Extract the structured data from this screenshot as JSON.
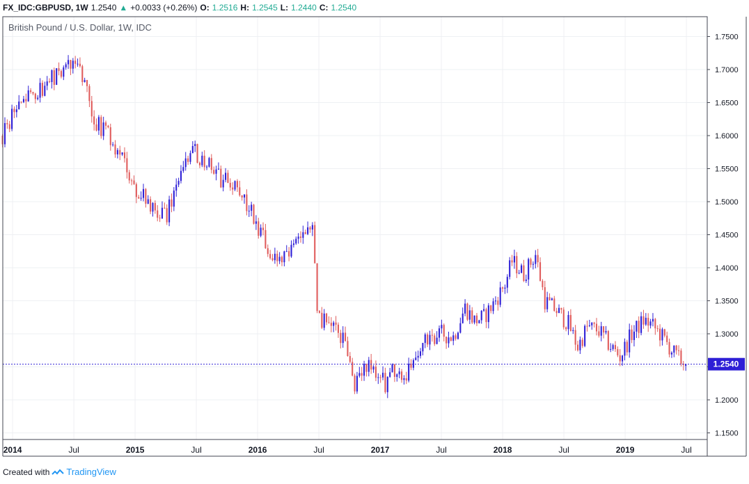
{
  "header": {
    "symbol": "FX_IDC:GBPUSD, 1W",
    "last": "1.2540",
    "change_arrow": "▲",
    "change": "+0.0033 (+0.26%)",
    "o_label": "O:",
    "o_value": "1.2516",
    "h_label": "H:",
    "h_value": "1.2545",
    "l_label": "L:",
    "l_value": "1.2440",
    "c_label": "C:",
    "c_value": "1.2540"
  },
  "chart_data": {
    "type": "candlestick",
    "title": "British Pound / U.S. Dollar, 1W, IDC",
    "up_color": "#2e1fd6",
    "down_color": "#e05c5c",
    "ylim": [
      1.14,
      1.78
    ],
    "y_ticks": [
      "1.7500",
      "1.7000",
      "1.6500",
      "1.6000",
      "1.5500",
      "1.5000",
      "1.4500",
      "1.4000",
      "1.3500",
      "1.3000",
      "1.2500",
      "1.2000",
      "1.1500"
    ],
    "x_ticks": [
      {
        "label": "2014",
        "t": 2014.0
      },
      {
        "label": "Jul",
        "t": 2014.5
      },
      {
        "label": "2015",
        "t": 2015.0
      },
      {
        "label": "Jul",
        "t": 2015.5
      },
      {
        "label": "2016",
        "t": 2016.0
      },
      {
        "label": "Jul",
        "t": 2016.5
      },
      {
        "label": "2017",
        "t": 2017.0
      },
      {
        "label": "Jul",
        "t": 2017.5
      },
      {
        "label": "2018",
        "t": 2018.0
      },
      {
        "label": "Jul",
        "t": 2018.5
      },
      {
        "label": "2019",
        "t": 2019.0
      },
      {
        "label": "Jul",
        "t": 2019.5
      }
    ],
    "xlim": [
      2013.92,
      2019.67
    ],
    "last_price": 1.254,
    "last_label": "1.2540",
    "anchors": [
      [
        "2013-12-02",
        1.6
      ],
      [
        "2014-01-06",
        1.64
      ],
      [
        "2014-02-10",
        1.655
      ],
      [
        "2014-03-10",
        1.665
      ],
      [
        "2014-04-07",
        1.675
      ],
      [
        "2014-05-05",
        1.69
      ],
      [
        "2014-06-02",
        1.7
      ],
      [
        "2014-07-07",
        1.715
      ],
      [
        "2014-08-04",
        1.68
      ],
      [
        "2014-09-01",
        1.625
      ],
      [
        "2014-10-06",
        1.605
      ],
      [
        "2014-11-03",
        1.58
      ],
      [
        "2014-12-01",
        1.56
      ],
      [
        "2015-01-05",
        1.52
      ],
      [
        "2015-02-02",
        1.505
      ],
      [
        "2015-03-02",
        1.49
      ],
      [
        "2015-04-06",
        1.48
      ],
      [
        "2015-05-04",
        1.53
      ],
      [
        "2015-06-01",
        1.56
      ],
      [
        "2015-06-22",
        1.585
      ],
      [
        "2015-07-20",
        1.56
      ],
      [
        "2015-08-17",
        1.555
      ],
      [
        "2015-09-14",
        1.535
      ],
      [
        "2015-10-12",
        1.535
      ],
      [
        "2015-11-09",
        1.51
      ],
      [
        "2015-12-07",
        1.495
      ],
      [
        "2016-01-04",
        1.46
      ],
      [
        "2016-02-01",
        1.43
      ],
      [
        "2016-03-07",
        1.415
      ],
      [
        "2016-04-04",
        1.415
      ],
      [
        "2016-05-02",
        1.45
      ],
      [
        "2016-06-13",
        1.465
      ],
      [
        "2016-06-27",
        1.33
      ],
      [
        "2016-08-01",
        1.31
      ],
      [
        "2016-09-05",
        1.3
      ],
      [
        "2016-10-03",
        1.26
      ],
      [
        "2016-10-17",
        1.22
      ],
      [
        "2016-11-14",
        1.25
      ],
      [
        "2016-12-12",
        1.245
      ],
      [
        "2017-01-16",
        1.225
      ],
      [
        "2017-02-13",
        1.245
      ],
      [
        "2017-03-13",
        1.23
      ],
      [
        "2017-04-10",
        1.26
      ],
      [
        "2017-05-08",
        1.29
      ],
      [
        "2017-06-05",
        1.285
      ],
      [
        "2017-07-03",
        1.3
      ],
      [
        "2017-08-07",
        1.295
      ],
      [
        "2017-09-11",
        1.34
      ],
      [
        "2017-10-09",
        1.32
      ],
      [
        "2017-11-06",
        1.325
      ],
      [
        "2017-12-04",
        1.345
      ],
      [
        "2018-01-08",
        1.375
      ],
      [
        "2018-01-29",
        1.41
      ],
      [
        "2018-03-05",
        1.39
      ],
      [
        "2018-04-09",
        1.42
      ],
      [
        "2018-05-07",
        1.35
      ],
      [
        "2018-06-11",
        1.335
      ],
      [
        "2018-07-16",
        1.315
      ],
      [
        "2018-08-13",
        1.28
      ],
      [
        "2018-09-10",
        1.31
      ],
      [
        "2018-10-15",
        1.305
      ],
      [
        "2018-11-12",
        1.285
      ],
      [
        "2018-12-17",
        1.265
      ],
      [
        "2019-01-21",
        1.3
      ],
      [
        "2019-02-25",
        1.32
      ],
      [
        "2019-03-18",
        1.315
      ],
      [
        "2019-04-15",
        1.3
      ],
      [
        "2019-05-13",
        1.28
      ],
      [
        "2019-06-03",
        1.265
      ],
      [
        "2019-07-01",
        1.254
      ]
    ]
  },
  "watermark": {
    "created_with": "Created with",
    "brand": "TradingView",
    "logo_icon": "tradingview-cloud-icon"
  }
}
